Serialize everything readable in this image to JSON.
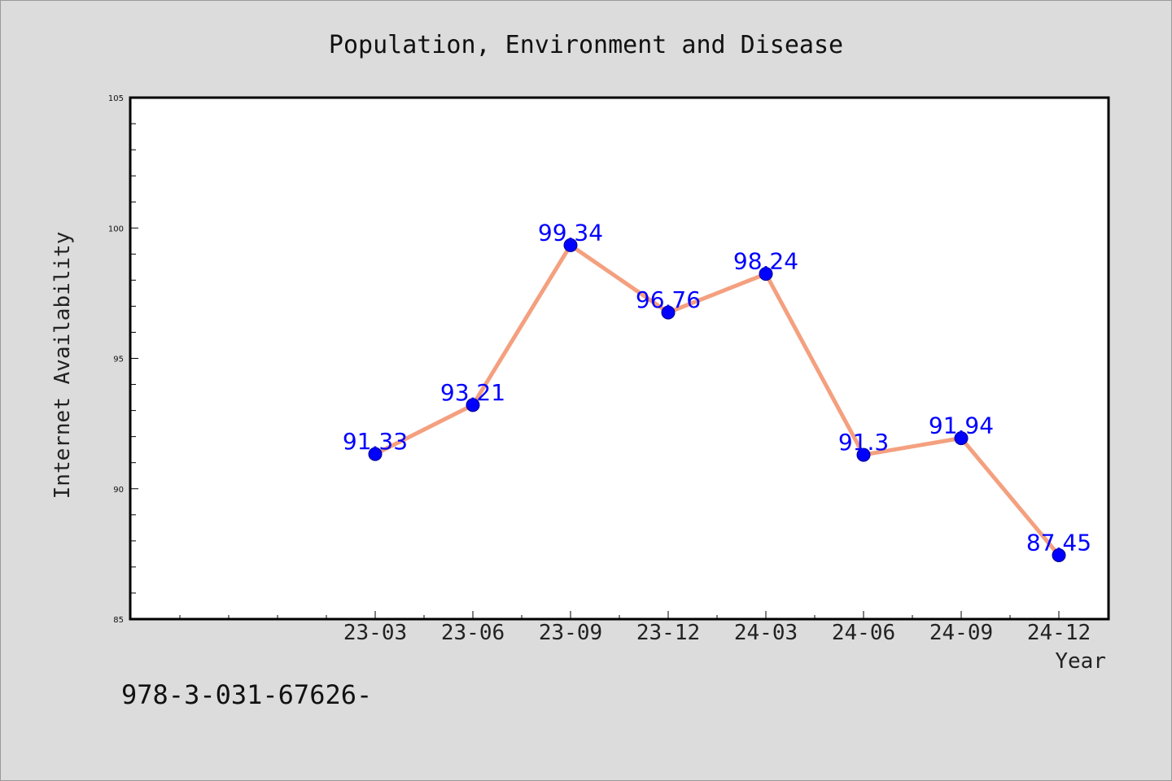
{
  "figure": {
    "title": "Population, Environment and Disease",
    "footer": "978-3-031-67626-"
  },
  "chart_data": {
    "type": "line",
    "title": "Population, Environment and Disease",
    "xlabel": "Year",
    "ylabel": "Internet Availability",
    "categories": [
      "23-03",
      "23-06",
      "23-09",
      "23-12",
      "24-03",
      "24-06",
      "24-09",
      "24-12"
    ],
    "series": [
      {
        "values": [
          91.33,
          93.21,
          99.34,
          96.76,
          98.24,
          91.3,
          91.94,
          87.45
        ]
      }
    ],
    "data_labels": [
      "91.33",
      "93.21",
      "99.34",
      "96.76",
      "98.24",
      "91.3",
      "91.94",
      "87.45"
    ],
    "ylim": [
      85,
      105
    ],
    "yticks": [
      85,
      90,
      95,
      100,
      105
    ],
    "ytick_labels": [
      "85",
      "90",
      "95",
      "100",
      "105"
    ],
    "grid": false,
    "colors": {
      "line": "#f4a07f",
      "marker": "#0000ff",
      "marker_edge": "#00008b",
      "data_label": "#0000ff",
      "plot_background": "#ffffff",
      "figure_background": "#dcdcdc"
    }
  }
}
